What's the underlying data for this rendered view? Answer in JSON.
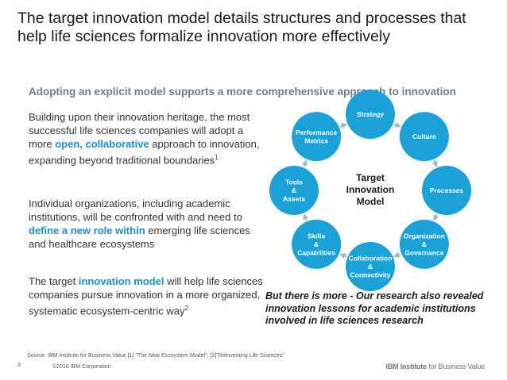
{
  "header": {
    "title": "The target innovation model details structures and processes that help life sciences formalize innovation more effectively"
  },
  "subtitle": "Adopting an explicit model supports a more comprehensive approach to innovation",
  "bullets": {
    "b1": {
      "text1": "Building upon their innovation heritage, the most successful life sciences companies will adopt a more ",
      "highlight": "open, collaborative",
      "text2": " approach to innovation, expanding beyond traditional boundaries",
      "sup": "1"
    },
    "b2": {
      "text1": "Individual organizations, including academic institutions, will be confronted with and need to ",
      "highlight": "define a new role within",
      "text2": " emerging life sciences and healthcare ecosystems"
    },
    "b3": {
      "text1": "The target ",
      "highlight": "innovation model",
      "text2": " will help life sciences companies pursue innovation in a more organized, systematic ecosystem-centric way",
      "sup": "2"
    }
  },
  "diagram": {
    "center": [
      "Target",
      "Innovation",
      "Model"
    ],
    "nodes": [
      {
        "lines": [
          "Strategy"
        ]
      },
      {
        "lines": [
          "Culture"
        ]
      },
      {
        "lines": [
          "Processes"
        ]
      },
      {
        "lines": [
          "Organization",
          "&",
          "Governance"
        ]
      },
      {
        "lines": [
          "Collaboration",
          "&",
          "Connectivity"
        ]
      },
      {
        "lines": [
          "Skills",
          "&",
          "Capabilities"
        ]
      },
      {
        "lines": [
          "Tools",
          "&",
          "Assets"
        ]
      },
      {
        "lines": [
          "Performance",
          "Metrics"
        ]
      }
    ],
    "colors": {
      "node": "#1aa2d8",
      "arrow": "#9fb8c5"
    }
  },
  "callout": "But there is more - Our research also revealed innovation lessons for academic institutions involved in life sciences research",
  "footer": {
    "source": "Source: IBM Institute for Business Value [1] \"The New Ecosystem Model\"; [2]\"Reinventing Life Sciences\"",
    "page": "3",
    "copyright": "©2016 IBM Corporation",
    "brand_bold": "IBM Institute",
    "brand_rest": " for Business Value"
  }
}
